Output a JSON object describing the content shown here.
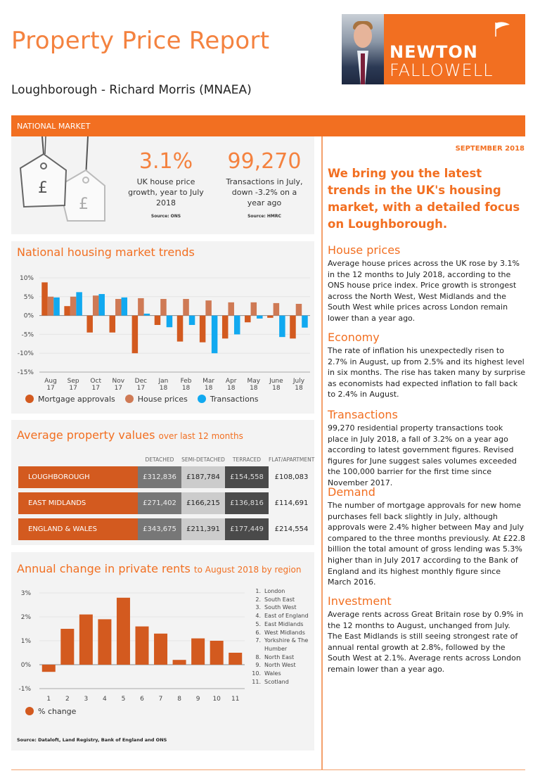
{
  "header": {
    "title": "Property Price Report",
    "subtitle": "Loughborough - Richard Morris (MNAEA)",
    "logo_line1": "NEWTON",
    "logo_line2": "FALLOWELL"
  },
  "section_bar": "NATIONAL MARKET",
  "stats": [
    {
      "value": "3.1%",
      "desc": "UK house price growth, year to July 2018",
      "source": "Source: ONS"
    },
    {
      "value": "99,270",
      "desc": "Transactions in July, down -3.2% on a year ago",
      "source": "Source: HMRC"
    }
  ],
  "trends_title": "National housing market trends",
  "rents": {
    "title": "Annual change in private rents",
    "title_suffix": "to August 2018 by region",
    "source": "Source: Dataloft, Land Registry, Bank of England and ONS"
  },
  "values": {
    "title": "Average property values",
    "title_suffix": "over last 12 months",
    "columns": [
      "DETACHED",
      "SEMI-DETACHED",
      "TERRACED",
      "FLAT/APARTMENT"
    ],
    "rows": [
      {
        "area": "LOUGHBOROUGH",
        "vals": [
          "£312,836",
          "£187,784",
          "£154,558",
          "£108,083"
        ]
      },
      {
        "area": "EAST MIDLANDS",
        "vals": [
          "£271,402",
          "£166,215",
          "£136,816",
          "£114,691"
        ]
      },
      {
        "area": "ENGLAND & WALES",
        "vals": [
          "£343,675",
          "£211,391",
          "£177,449",
          "£214,554"
        ]
      }
    ]
  },
  "chart_data": [
    {
      "type": "bar",
      "title": "National housing market trends",
      "ylim": [
        -15,
        10
      ],
      "yticks": [
        "10%",
        "5%",
        "0%",
        "-5%",
        "-10%",
        "-15%"
      ],
      "ytick_values": [
        10,
        5,
        0,
        -5,
        -10,
        -15
      ],
      "categories": [
        [
          "Aug",
          "17"
        ],
        [
          "Sep",
          "17"
        ],
        [
          "Oct",
          "17"
        ],
        [
          "Nov",
          "17"
        ],
        [
          "Dec",
          "17"
        ],
        [
          "Jan",
          "18"
        ],
        [
          "Feb",
          "18"
        ],
        [
          "Mar",
          "18"
        ],
        [
          "Apr",
          "18"
        ],
        [
          "May",
          "18"
        ],
        [
          "June",
          "18"
        ],
        [
          "July",
          "18"
        ]
      ],
      "series": [
        {
          "name": "Mortgage approvals",
          "color": "#d35a1f",
          "values": [
            8.8,
            2.5,
            -4.5,
            -4.5,
            -10,
            -2.5,
            -6.9,
            -7.1,
            -6.1,
            -1.8,
            -0.6,
            -6.1
          ]
        },
        {
          "name": "House prices",
          "color": "#cf7a55",
          "values": [
            5.0,
            5.0,
            5.3,
            4.4,
            4.6,
            4.4,
            4.4,
            4.0,
            3.5,
            3.5,
            3.3,
            3.1
          ]
        },
        {
          "name": "Transactions",
          "color": "#11a9f0",
          "values": [
            4.8,
            6.2,
            5.7,
            4.8,
            0.5,
            -3.1,
            -2.5,
            -10,
            -5,
            -0.8,
            -5.7,
            -3.2
          ]
        }
      ],
      "legend": "bottom",
      "grid": true
    },
    {
      "type": "bar",
      "title": "Annual change in private rents to August 2018 by region",
      "ylim": [
        -1,
        3
      ],
      "yticks": [
        "3%",
        "2%",
        "1%",
        "0%",
        "-1%"
      ],
      "ytick_values": [
        3,
        2,
        1,
        0,
        -1
      ],
      "categories": [
        "1",
        "2",
        "3",
        "4",
        "5",
        "6",
        "7",
        "8",
        "9",
        "10",
        "11"
      ],
      "region_names": [
        "London",
        "South East",
        "South West",
        "East of England",
        "East Midlands",
        "West Midlands",
        "Yorkshire & The Humber",
        "North East",
        "North West",
        "Wales",
        "Scotland"
      ],
      "series": [
        {
          "name": "% change",
          "color": "#d35a1f",
          "values": [
            -0.3,
            1.5,
            2.1,
            1.9,
            2.8,
            1.6,
            1.3,
            0.2,
            1.1,
            1.0,
            0.5
          ]
        }
      ],
      "legend": "bottom",
      "grid": true
    }
  ],
  "right": {
    "month": "SEPTEMBER 2018",
    "intro": "We bring you the latest trends in the UK's housing market, with a detailed focus on Loughborough.",
    "sections": [
      {
        "title": "House prices",
        "body": "Average house prices across the UK rose by 3.1% in the 12 months to July 2018, according to the ONS house price index. Price growth is strongest across the North West, West Midlands and the South West while prices across London remain lower than a year ago."
      },
      {
        "title": "Economy",
        "body": "The rate of inflation his unexpectedly risen to 2.7% in August, up from 2.5% and its highest level in six months. The rise has taken many by surprise as economists had expected inflation to fall back to 2.4% in August."
      },
      {
        "title": "Transactions",
        "body": "99,270 residential property transactions took place in July 2018, a fall of 3.2% on a year ago according to latest government figures. Revised figures for June suggest sales volumes exceeded the 100,000 barrier for the first time since November 2017."
      },
      {
        "title": "Demand",
        "body": "The number of mortgage approvals for new home purchases fell back slightly in July, although approvals were 2.4% higher between May and July compared to the three months previously. At £22.8 billion the total amount of gross lending was 5.3% higher than in July 2017 according to the Bank of England and its highest monthly figure since March 2016."
      },
      {
        "title": "Investment",
        "body": "Average rents across Great Britain rose by 0.9% in the 12 months to August, unchanged from July. The East Midlands is still seeing strongest rate of annual rental growth at 2.8%, followed by the South West at 2.1%. Average rents across London remain lower than a year ago."
      }
    ]
  }
}
